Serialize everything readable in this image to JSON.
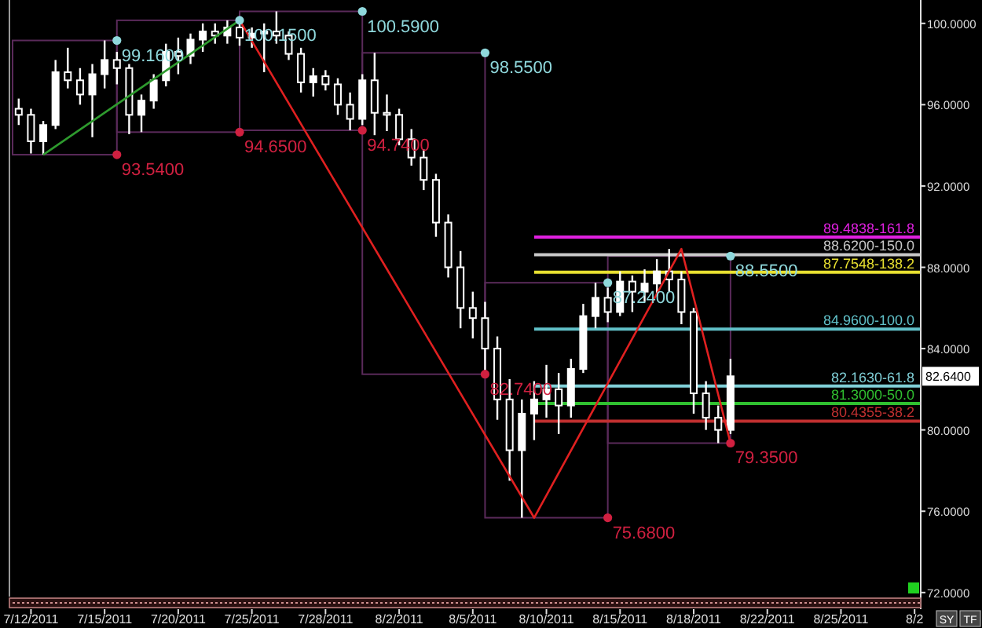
{
  "chart_data": {
    "type": "candlestick",
    "categories": [
      null,
      "7/12/2011",
      null,
      null,
      null,
      null,
      null,
      "7/15/2011",
      null,
      null,
      null,
      null,
      null,
      "7/20/2011",
      null,
      null,
      null,
      null,
      null,
      "7/25/2011",
      null,
      null,
      null,
      null,
      null,
      "7/28/2011",
      null,
      null,
      null,
      null,
      null,
      "8/2/2011",
      null,
      null,
      null,
      null,
      null,
      "8/5/2011",
      null,
      null,
      null,
      null,
      null,
      "8/10/2011",
      null,
      null,
      null,
      null,
      null,
      "8/15/2011",
      null,
      null,
      null,
      null,
      null,
      "8/18/2011",
      null,
      null,
      null,
      null,
      null,
      "8/22/2011",
      null,
      null,
      null,
      null,
      null,
      "8/25/2011",
      null,
      null,
      null,
      null,
      null,
      "8/2"
    ],
    "ohlc": [
      [
        95.8,
        96.3,
        95.0,
        95.5
      ],
      [
        95.5,
        95.8,
        93.6,
        94.2
      ],
      [
        94.2,
        95.2,
        93.54,
        95.0
      ],
      [
        95.0,
        98.2,
        94.8,
        97.6
      ],
      [
        97.6,
        98.8,
        96.8,
        97.2
      ],
      [
        97.2,
        97.8,
        96.0,
        96.5
      ],
      [
        96.5,
        98.0,
        94.4,
        97.5
      ],
      [
        97.5,
        99.16,
        96.8,
        98.2
      ],
      [
        98.2,
        98.6,
        97.0,
        97.8
      ],
      [
        97.8,
        98.0,
        94.55,
        95.5
      ],
      [
        95.5,
        96.5,
        94.65,
        96.2
      ],
      [
        96.2,
        97.5,
        95.8,
        97.2
      ],
      [
        97.2,
        99.0,
        96.9,
        98.6
      ],
      [
        98.6,
        99.3,
        97.5,
        98.4
      ],
      [
        98.4,
        99.5,
        98.0,
        99.2
      ],
      [
        99.2,
        100.0,
        98.6,
        99.6
      ],
      [
        99.6,
        100.0,
        99.0,
        99.4
      ],
      [
        99.4,
        100.15,
        99.0,
        99.8
      ],
      [
        99.8,
        100.1,
        98.9,
        99.3
      ],
      [
        99.3,
        99.8,
        98.8,
        99.5
      ],
      [
        99.5,
        100.0,
        97.6,
        99.6
      ],
      [
        99.6,
        100.59,
        99.0,
        99.4
      ],
      [
        99.4,
        99.6,
        98.2,
        98.5
      ],
      [
        98.5,
        98.8,
        96.6,
        97.1
      ],
      [
        97.1,
        97.8,
        96.4,
        97.4
      ],
      [
        97.4,
        97.7,
        96.7,
        97.0
      ],
      [
        97.0,
        97.3,
        95.5,
        96.0
      ],
      [
        96.0,
        96.6,
        94.74,
        95.3
      ],
      [
        95.3,
        97.5,
        95.0,
        97.2
      ],
      [
        97.2,
        98.55,
        94.5,
        95.6
      ],
      [
        95.6,
        96.5,
        94.7,
        95.5
      ],
      [
        95.5,
        95.8,
        94.0,
        94.3
      ],
      [
        94.3,
        94.8,
        93.0,
        93.4
      ],
      [
        93.4,
        93.8,
        91.8,
        92.3
      ],
      [
        92.3,
        92.6,
        89.5,
        90.2
      ],
      [
        90.2,
        90.6,
        87.5,
        88.0
      ],
      [
        88.0,
        88.8,
        85.0,
        86.0
      ],
      [
        86.0,
        86.8,
        84.5,
        85.5
      ],
      [
        85.5,
        86.3,
        82.74,
        84.0
      ],
      [
        84.0,
        84.6,
        80.5,
        81.5
      ],
      [
        81.5,
        82.5,
        77.5,
        79.0
      ],
      [
        79.0,
        81.5,
        75.68,
        80.8
      ],
      [
        80.8,
        82.4,
        79.5,
        81.5
      ],
      [
        81.5,
        83.2,
        80.6,
        82.0
      ],
      [
        82.0,
        82.8,
        79.8,
        81.2
      ],
      [
        81.2,
        83.5,
        80.6,
        83.0
      ],
      [
        83.0,
        86.2,
        82.8,
        85.6
      ],
      [
        85.6,
        87.24,
        85.0,
        86.5
      ],
      [
        86.5,
        87.0,
        85.3,
        85.8
      ],
      [
        85.8,
        87.8,
        85.6,
        87.3
      ],
      [
        87.3,
        87.6,
        85.8,
        86.8
      ],
      [
        86.8,
        87.9,
        86.3,
        87.2
      ],
      [
        87.2,
        88.4,
        86.6,
        87.8
      ],
      [
        87.8,
        88.9,
        86.8,
        87.4
      ],
      [
        87.4,
        87.8,
        85.2,
        85.8
      ],
      [
        85.8,
        86.0,
        80.8,
        81.8
      ],
      [
        81.8,
        82.4,
        80.0,
        80.6
      ],
      [
        80.6,
        81.2,
        79.35,
        80.0
      ],
      [
        80.0,
        83.5,
        79.8,
        82.64
      ],
      null,
      null,
      null,
      null,
      null,
      null,
      null,
      null,
      null,
      null,
      null,
      null,
      null,
      null,
      null
    ],
    "color": "#ffffff",
    "series": [
      {
        "type": "line",
        "color": "#2e9a2e",
        "values": [
          null,
          null,
          93.54,
          null,
          null,
          null,
          null,
          null,
          null,
          null,
          null,
          null,
          null,
          null,
          null,
          null,
          null,
          null,
          100.15,
          null,
          null,
          null,
          null,
          null,
          null,
          null,
          null,
          null,
          null,
          null,
          null,
          null,
          null,
          null,
          null,
          null,
          null,
          null,
          null,
          null,
          null,
          null,
          null,
          null,
          null,
          null,
          null,
          null,
          null,
          null,
          null,
          null,
          null,
          null,
          null,
          null,
          null,
          null,
          null,
          null,
          null,
          null,
          null,
          null,
          null,
          null,
          null,
          null,
          null,
          null,
          null,
          null,
          null,
          null
        ]
      },
      {
        "type": "line",
        "color": "#e02020",
        "values": [
          null,
          null,
          null,
          null,
          null,
          null,
          null,
          null,
          null,
          null,
          null,
          null,
          null,
          null,
          null,
          null,
          null,
          null,
          100.15,
          null,
          null,
          null,
          null,
          null,
          null,
          null,
          null,
          null,
          null,
          null,
          null,
          null,
          null,
          null,
          null,
          null,
          null,
          null,
          null,
          null,
          null,
          null,
          75.68,
          null,
          null,
          null,
          null,
          null,
          null,
          null,
          null,
          null,
          null,
          null,
          88.9,
          null,
          null,
          null,
          79.35,
          null,
          null,
          null,
          null,
          null,
          null,
          null,
          null,
          null,
          null,
          null,
          null,
          null,
          null,
          null
        ]
      },
      {
        "type": "scatter",
        "color": "#8fd8dc",
        "values": [
          null,
          null,
          null,
          null,
          null,
          null,
          null,
          null,
          99.16,
          null,
          null,
          null,
          null,
          null,
          null,
          null,
          null,
          null,
          100.15,
          null,
          null,
          null,
          null,
          null,
          null,
          null,
          null,
          null,
          100.59,
          null,
          null,
          null,
          null,
          null,
          null,
          null,
          null,
          null,
          98.55,
          null,
          null,
          null,
          null,
          null,
          null,
          null,
          null,
          null,
          87.24,
          null,
          null,
          null,
          null,
          null,
          null,
          null,
          null,
          null,
          88.55,
          null,
          null,
          null,
          null,
          null,
          null,
          null,
          null,
          null,
          null,
          null,
          null,
          null,
          null,
          null
        ],
        "value_labels": [
          null,
          null,
          null,
          null,
          null,
          null,
          null,
          null,
          "99.1600",
          null,
          null,
          null,
          null,
          null,
          null,
          null,
          null,
          null,
          "100.1500",
          null,
          null,
          null,
          null,
          null,
          null,
          null,
          null,
          null,
          "100.5900",
          null,
          null,
          null,
          null,
          null,
          null,
          null,
          null,
          null,
          "98.5500",
          null,
          null,
          null,
          null,
          null,
          null,
          null,
          null,
          null,
          "87.2400",
          null,
          null,
          null,
          null,
          null,
          null,
          null,
          null,
          null,
          "88.5500",
          null,
          null,
          null,
          null,
          null,
          null,
          null,
          null,
          null,
          null,
          null,
          null,
          null,
          null,
          null
        ]
      },
      {
        "type": "scatter",
        "color": "#d02040",
        "values": [
          null,
          null,
          null,
          null,
          null,
          null,
          null,
          null,
          93.54,
          null,
          null,
          null,
          null,
          null,
          null,
          null,
          null,
          null,
          94.65,
          null,
          null,
          null,
          null,
          null,
          null,
          null,
          null,
          null,
          94.74,
          null,
          null,
          null,
          null,
          null,
          null,
          null,
          null,
          null,
          82.74,
          null,
          null,
          null,
          null,
          null,
          null,
          null,
          null,
          null,
          75.68,
          null,
          null,
          null,
          null,
          null,
          null,
          null,
          null,
          null,
          79.35,
          null,
          null,
          null,
          null,
          null,
          null,
          null,
          null,
          null,
          null,
          null,
          null,
          null,
          null,
          null
        ],
        "value_labels": [
          null,
          null,
          null,
          null,
          null,
          null,
          null,
          null,
          "93.5400",
          null,
          null,
          null,
          null,
          null,
          null,
          null,
          null,
          null,
          "94.6500",
          null,
          null,
          null,
          null,
          null,
          null,
          null,
          null,
          null,
          "94.7400",
          null,
          null,
          null,
          null,
          null,
          null,
          null,
          null,
          null,
          "82.7400",
          null,
          null,
          null,
          null,
          null,
          null,
          null,
          null,
          null,
          "75.6800",
          null,
          null,
          null,
          null,
          null,
          null,
          null,
          null,
          null,
          "79.3500",
          null,
          null,
          null,
          null,
          null,
          null,
          null,
          null,
          null,
          null,
          null,
          null,
          null,
          null,
          null
        ]
      }
    ],
    "ylim": [
      71.8,
      101.15
    ],
    "yticks": [
      {
        "value": 72,
        "label": "72.0000"
      },
      {
        "value": 76,
        "label": "76.0000"
      },
      {
        "value": 80,
        "label": "80.0000"
      },
      {
        "value": 84,
        "label": "84.0000"
      },
      {
        "value": 88,
        "label": "88.0000"
      },
      {
        "value": 92,
        "label": "92.0000"
      },
      {
        "value": 96,
        "label": "96.0000"
      },
      {
        "value": 100,
        "label": "100.0000"
      }
    ],
    "ref_lines": [
      {
        "axis": "y",
        "value": 89.4838,
        "label": "89.4838-161.8",
        "color": "#e020e0"
      },
      {
        "axis": "y",
        "value": 88.62,
        "label": "88.6200-150.0",
        "color": "#c8c8c8"
      },
      {
        "axis": "y",
        "value": 87.7548,
        "label": "87.7548-138.2",
        "color": "#e8e030"
      },
      {
        "axis": "y",
        "value": 84.96,
        "label": "84.9600-100.0",
        "color": "#60c0c8"
      },
      {
        "axis": "y",
        "value": 82.163,
        "label": "82.1630-61.8",
        "color": "#80d0d8"
      },
      {
        "axis": "y",
        "value": 81.3,
        "label": "81.3000-50.0",
        "color": "#30c030"
      },
      {
        "axis": "y",
        "value": 80.4355,
        "label": "80.4355-38.2",
        "color": "#c03030"
      }
    ],
    "annotations": [
      {
        "text": "82.6400",
        "y": 82.64
      },
      "SY",
      "TF"
    ]
  }
}
